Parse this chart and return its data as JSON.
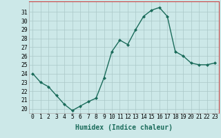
{
  "x": [
    0,
    1,
    2,
    3,
    4,
    5,
    6,
    7,
    8,
    9,
    10,
    11,
    12,
    13,
    14,
    15,
    16,
    17,
    18,
    19,
    20,
    21,
    22,
    23
  ],
  "y": [
    24.0,
    23.0,
    22.5,
    21.5,
    20.5,
    19.8,
    20.3,
    20.8,
    21.2,
    23.5,
    26.5,
    27.8,
    27.3,
    29.0,
    30.5,
    31.2,
    31.5,
    30.5,
    26.5,
    26.0,
    25.2,
    25.0,
    25.0,
    25.2
  ],
  "line_color": "#1a6b5a",
  "marker": "D",
  "marker_size": 2.0,
  "line_width": 1.0,
  "xlabel": "Humidex (Indice chaleur)",
  "ylim": [
    19.5,
    32.2
  ],
  "xlim": [
    -0.5,
    23.5
  ],
  "yticks": [
    20,
    21,
    22,
    23,
    24,
    25,
    26,
    27,
    28,
    29,
    30,
    31
  ],
  "xticks": [
    0,
    1,
    2,
    3,
    4,
    5,
    6,
    7,
    8,
    9,
    10,
    11,
    12,
    13,
    14,
    15,
    16,
    17,
    18,
    19,
    20,
    21,
    22,
    23
  ],
  "background_color": "#cce8e8",
  "grid_color": "#aac8c8",
  "tick_fontsize": 5.8,
  "xlabel_fontsize": 7.0
}
